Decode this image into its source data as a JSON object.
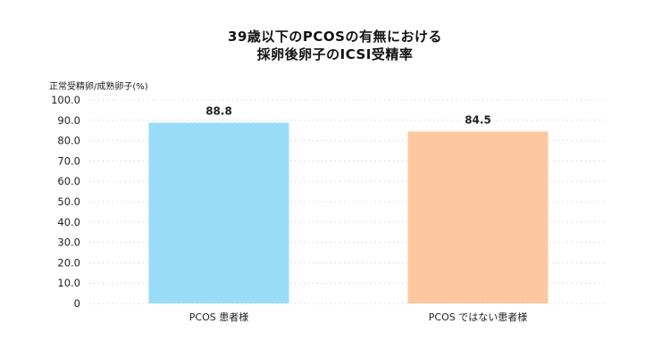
{
  "chart_data": {
    "type": "bar",
    "title_line1": "39歳以下のPCOSの有無における",
    "title_line2": "採卵後卵子のICSI受精率",
    "ylabel": "正常受精卵/成熟卵子(%)",
    "xlabel": "",
    "categories": [
      "PCOS 患者様",
      "PCOS ではない患者様"
    ],
    "values": [
      88.8,
      84.5
    ],
    "value_labels": [
      "88.8",
      "84.5"
    ],
    "bar_colors": [
      "#99dcf8",
      "#fdc8a0"
    ],
    "ylim": [
      0,
      100
    ],
    "yticks": [
      0,
      10,
      20,
      30,
      40,
      50,
      60,
      70,
      80,
      90,
      100
    ],
    "ytick_labels": [
      "0",
      "10.0",
      "20.0",
      "30.0",
      "40.0",
      "50.0",
      "60.0",
      "70.0",
      "80.0",
      "90.0",
      "100.0"
    ],
    "grid": true,
    "legend": "none"
  }
}
